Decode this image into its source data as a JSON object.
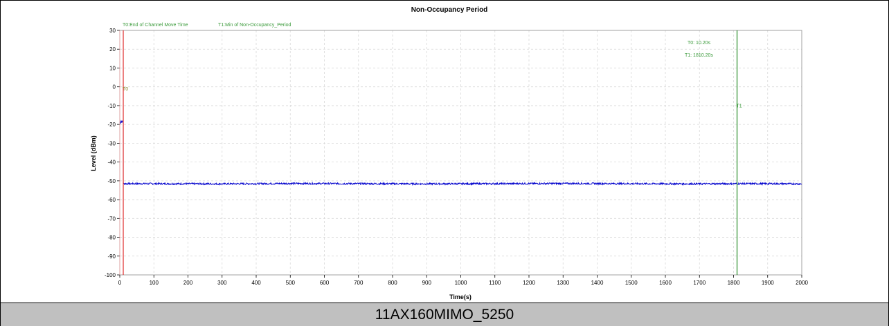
{
  "caption": "11AX160MIMO_5250",
  "chart_data": {
    "type": "line",
    "title": "Non-Occupancy Period",
    "xlabel": "Time(s)",
    "ylabel": "Level (dBm)",
    "xlim": [
      0,
      2000
    ],
    "ylim": [
      -100,
      30
    ],
    "x_ticks": [
      0,
      100,
      200,
      300,
      400,
      500,
      600,
      700,
      800,
      900,
      1000,
      1100,
      1200,
      1300,
      1400,
      1500,
      1600,
      1700,
      1800,
      1900,
      2000
    ],
    "y_ticks": [
      30,
      20,
      10,
      0,
      -10,
      -20,
      -30,
      -40,
      -50,
      -60,
      -70,
      -80,
      -90,
      -100
    ],
    "grid": true,
    "series": [
      {
        "color": "#0000cc",
        "x": [
          0,
          2,
          4,
          6,
          8,
          10.2,
          10.2,
          100,
          300,
          500,
          700,
          900,
          1100,
          1300,
          1500,
          1700,
          1810.2,
          1900,
          2000
        ],
        "y": [
          -18.5,
          -19,
          -18,
          -18.8,
          -18.2,
          -18.5,
          -51.5,
          -51.5,
          -51.6,
          -51.4,
          -51.5,
          -51.6,
          -51.5,
          -51.4,
          -51.5,
          -51.6,
          -51.5,
          -51.5,
          -51.6
        ]
      }
    ],
    "markers": [
      {
        "label": "T0",
        "x": 10.2,
        "color": "#e03030",
        "legend": "T0:End of Channel Move Time"
      },
      {
        "label": "T1",
        "x": 1810.2,
        "color": "#228b22",
        "legend": "T1:Min of Non-Occupancy_Period"
      }
    ],
    "annotations": [
      "T0: 10.20s",
      "T1: 1810.20s"
    ]
  }
}
